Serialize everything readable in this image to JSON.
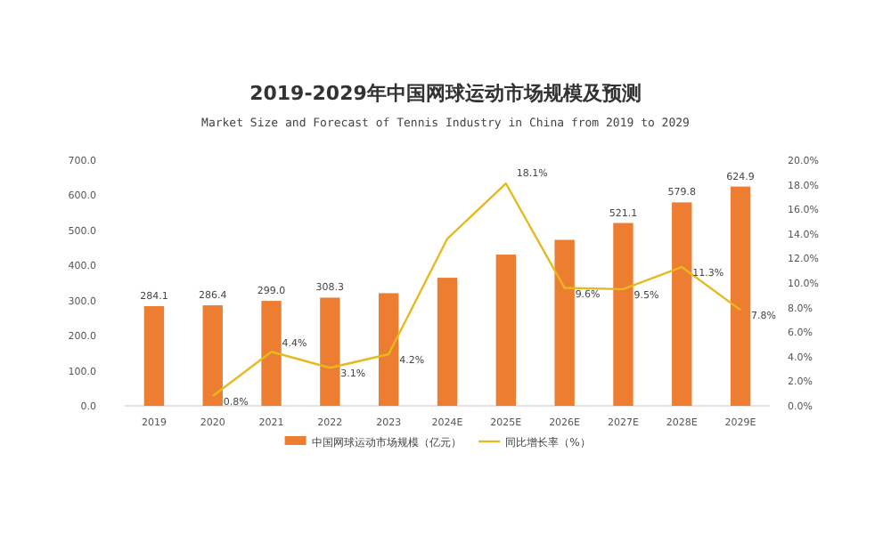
{
  "chart_data": {
    "type": "bar",
    "title": "2019-2029年中国网球运动市场规模及预测",
    "subtitle": "Market Size and Forecast of Tennis Industry in China from 2019 to 2029",
    "categories": [
      "2019",
      "2020",
      "2021",
      "2022",
      "2023",
      "2024E",
      "2025E",
      "2026E",
      "2027E",
      "2028E",
      "2029E"
    ],
    "series": [
      {
        "name": "中国网球运动市场规模（亿元）",
        "color": "#ed7d31",
        "values": [
          284.1,
          286.4,
          299.0,
          308.3,
          321,
          365,
          431,
          473,
          521.1,
          579.8,
          624.9
        ],
        "value_labels": [
          "284.1",
          "286.4",
          "299.0",
          "308.3",
          null,
          null,
          null,
          null,
          "521.1",
          "579.8",
          "624.9"
        ]
      },
      {
        "name": "同比增长率（%）",
        "type": "line",
        "axis": "y2",
        "color": "#e6b91e",
        "values": [
          null,
          0.8,
          4.4,
          3.1,
          4.2,
          13.6,
          18.1,
          9.6,
          9.5,
          11.3,
          7.8
        ],
        "value_labels": [
          null,
          "0.8%",
          "4.4%",
          "3.1%",
          "4.2%",
          null,
          "18.1%",
          "9.6%",
          "9.5%",
          "11.3%",
          "7.8%"
        ]
      }
    ],
    "ylim": [
      0,
      700
    ],
    "yticks": [
      {
        "value": 0,
        "label": "0.0"
      },
      {
        "value": 100,
        "label": "100.0"
      },
      {
        "value": 200,
        "label": "200.0"
      },
      {
        "value": 300,
        "label": "300.0"
      },
      {
        "value": 400,
        "label": "400.0"
      },
      {
        "value": 500,
        "label": "500.0"
      },
      {
        "value": 600,
        "label": "600.0"
      },
      {
        "value": 700,
        "label": "700.0"
      }
    ],
    "y2lim": [
      0,
      20
    ],
    "y2ticks": [
      {
        "value": 0,
        "label": "0.0%"
      },
      {
        "value": 2,
        "label": "2.0%"
      },
      {
        "value": 4,
        "label": "4.0%"
      },
      {
        "value": 6,
        "label": "6.0%"
      },
      {
        "value": 8,
        "label": "8.0%"
      },
      {
        "value": 10,
        "label": "10.0%"
      },
      {
        "value": 12,
        "label": "12.0%"
      },
      {
        "value": 14,
        "label": "14.0%"
      },
      {
        "value": 16,
        "label": "16.0%"
      },
      {
        "value": 18,
        "label": "18.0%"
      },
      {
        "value": 20,
        "label": "20.0%"
      }
    ],
    "legend": "bottom",
    "marker": "none",
    "line_style": "solid"
  }
}
